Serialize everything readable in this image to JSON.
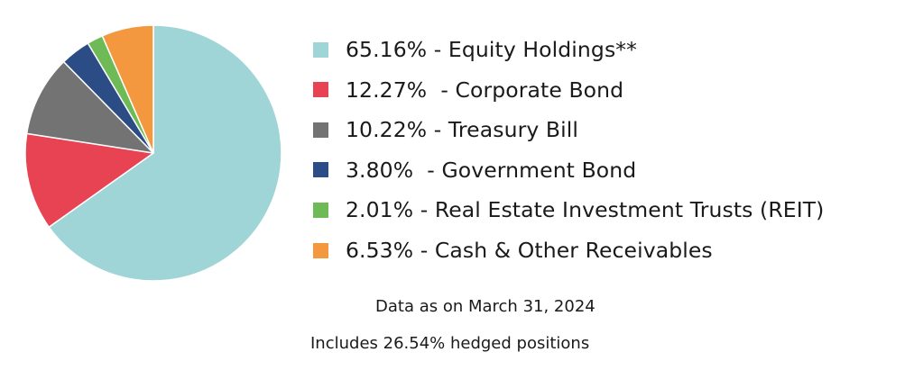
{
  "chart_data": {
    "type": "pie",
    "title": "",
    "slices": [
      {
        "label": "65.16% - Equity Holdings**",
        "value": 65.16,
        "color": "#9fd5d7"
      },
      {
        "label": "12.27%  - Corporate Bond",
        "value": 12.27,
        "color": "#e84352"
      },
      {
        "label": "10.22% - Treasury Bill",
        "value": 10.22,
        "color": "#737373"
      },
      {
        "label": "3.80%  - Government Bond",
        "value": 3.8,
        "color": "#2c4c86"
      },
      {
        "label": "2.01% - Real Estate Investment Trusts (REIT)",
        "value": 2.01,
        "color": "#6dba57"
      },
      {
        "label": "6.53% - Cash & Other Receivables",
        "value": 6.53,
        "color": "#f4983f"
      }
    ],
    "legend_position": "right"
  },
  "notes": {
    "data_date": "Data as on March 31, 2024",
    "hedged": "Includes 26.54% hedged positions"
  }
}
